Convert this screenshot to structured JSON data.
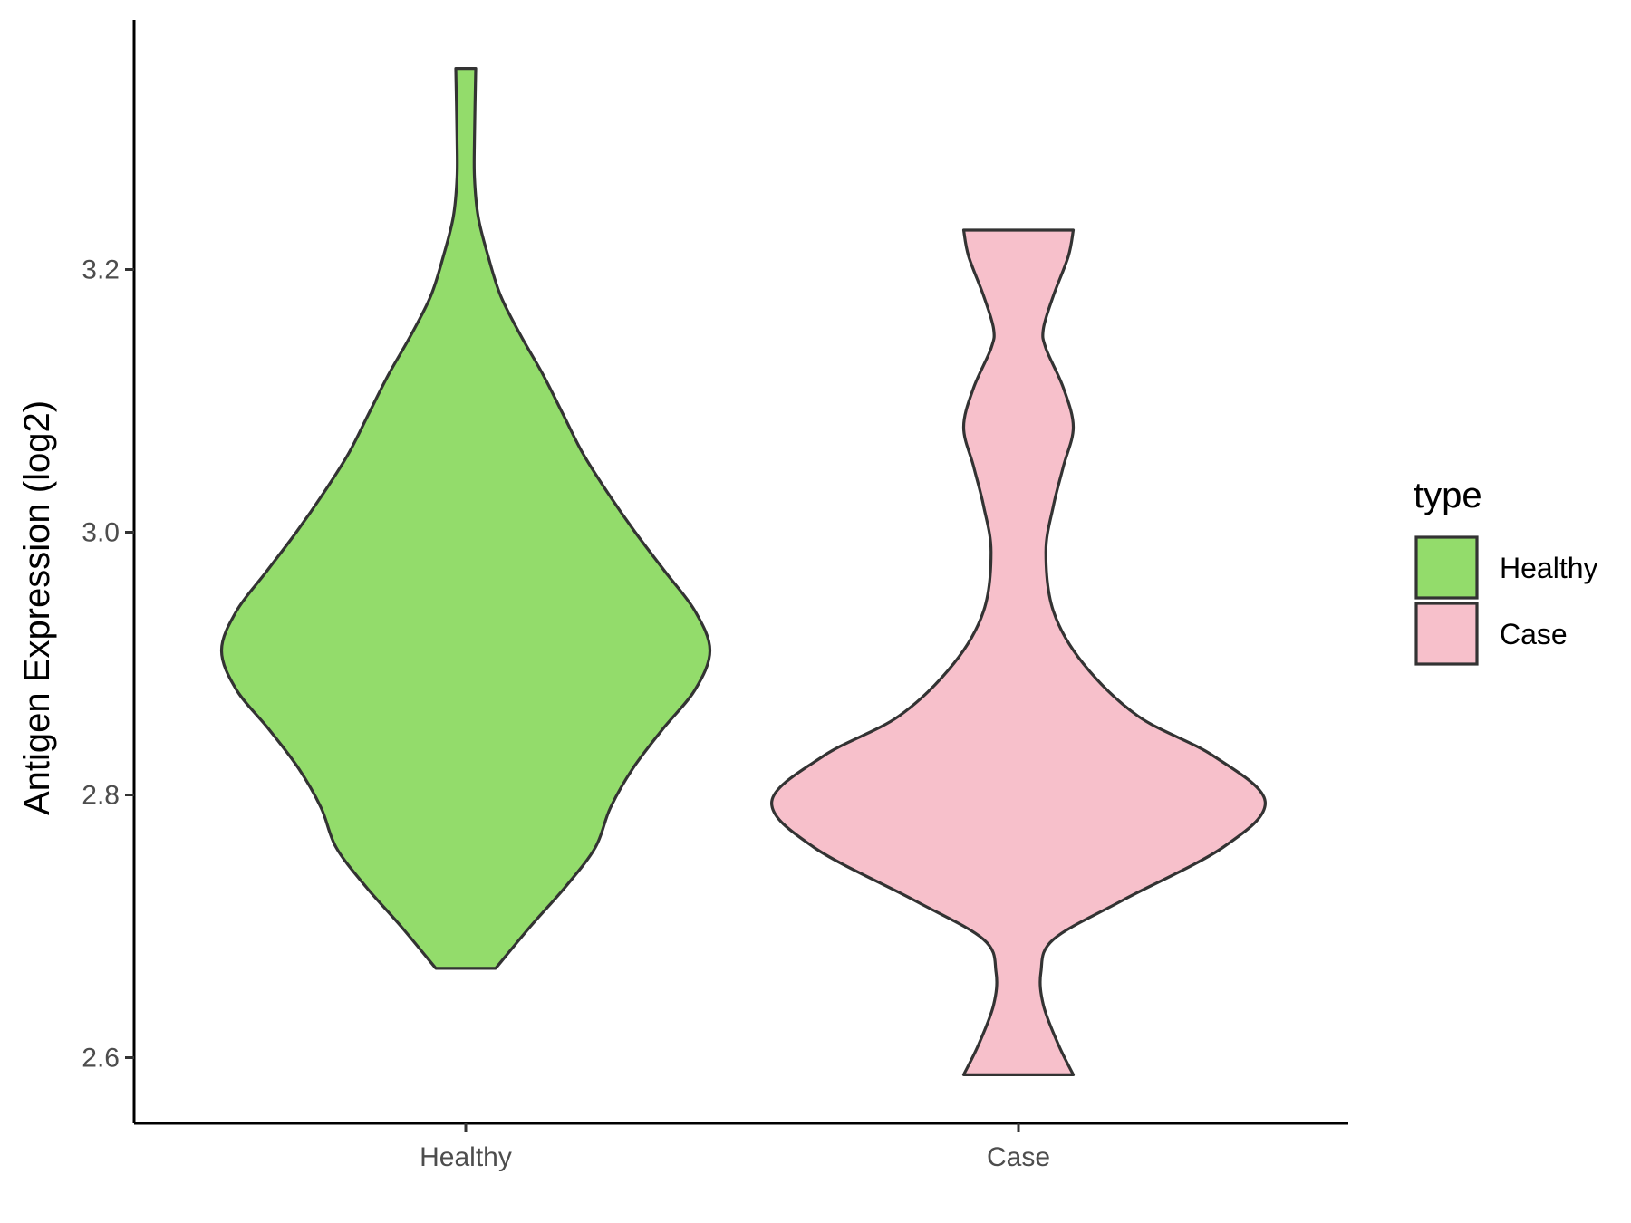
{
  "chart_data": {
    "type": "violin",
    "categories": [
      "Healthy",
      "Case"
    ],
    "ylabel": "Antigen Expression (log2)",
    "xlabel": "",
    "yticks": [
      2.6,
      2.8,
      3.0,
      3.2
    ],
    "ylim": [
      2.55,
      3.39
    ],
    "grid": false,
    "legend": {
      "title": "type",
      "position": "right",
      "entries": [
        "Healthy",
        "Case"
      ]
    },
    "colors": {
      "Healthy": "#93dc6b",
      "Case": "#f7c0cb",
      "outline": "#333333"
    },
    "series": [
      {
        "name": "Healthy",
        "min": 2.668,
        "max": 3.353,
        "density": [
          [
            2.668,
            0.12
          ],
          [
            2.7,
            0.26
          ],
          [
            2.73,
            0.4
          ],
          [
            2.76,
            0.52
          ],
          [
            2.79,
            0.58
          ],
          [
            2.82,
            0.67
          ],
          [
            2.85,
            0.79
          ],
          [
            2.88,
            0.92
          ],
          [
            2.91,
            0.98
          ],
          [
            2.94,
            0.92
          ],
          [
            2.97,
            0.8
          ],
          [
            3.0,
            0.68
          ],
          [
            3.03,
            0.57
          ],
          [
            3.06,
            0.47
          ],
          [
            3.09,
            0.39
          ],
          [
            3.12,
            0.31
          ],
          [
            3.15,
            0.22
          ],
          [
            3.18,
            0.14
          ],
          [
            3.21,
            0.09
          ],
          [
            3.24,
            0.05
          ],
          [
            3.27,
            0.035
          ],
          [
            3.3,
            0.035
          ],
          [
            3.353,
            0.04
          ]
        ]
      },
      {
        "name": "Case",
        "min": 2.587,
        "max": 3.23,
        "density": [
          [
            2.587,
            0.22
          ],
          [
            2.61,
            0.16
          ],
          [
            2.64,
            0.1
          ],
          [
            2.665,
            0.09
          ],
          [
            2.69,
            0.14
          ],
          [
            2.72,
            0.42
          ],
          [
            2.76,
            0.82
          ],
          [
            2.795,
            0.99
          ],
          [
            2.83,
            0.78
          ],
          [
            2.86,
            0.48
          ],
          [
            2.9,
            0.26
          ],
          [
            2.94,
            0.14
          ],
          [
            2.985,
            0.11
          ],
          [
            3.02,
            0.14
          ],
          [
            3.05,
            0.18
          ],
          [
            3.08,
            0.22
          ],
          [
            3.11,
            0.18
          ],
          [
            3.14,
            0.11
          ],
          [
            3.155,
            0.1
          ],
          [
            3.18,
            0.14
          ],
          [
            3.21,
            0.2
          ],
          [
            3.23,
            0.22
          ]
        ]
      }
    ]
  }
}
